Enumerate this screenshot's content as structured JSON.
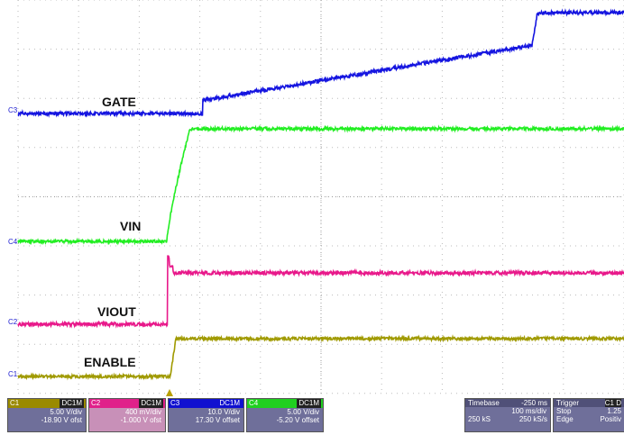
{
  "trace_labels": [
    "GATE",
    "VIN",
    "VIOUT",
    "ENABLE"
  ],
  "channel_markers": [
    "C3",
    "C4",
    "C2",
    "C1"
  ],
  "channels": [
    {
      "name": "C1",
      "coupling": "DC1M",
      "scale": "5.00 V/div",
      "offset": "-18.90 V ofst"
    },
    {
      "name": "C2",
      "coupling": "DC1M",
      "scale": "400 mV/div",
      "offset": "-1.000 V ofst"
    },
    {
      "name": "C3",
      "coupling": "DC1M",
      "scale": "10.0 V/div",
      "offset": "17.30 V offset"
    },
    {
      "name": "C4",
      "coupling": "DC1M",
      "scale": "5.00 V/div",
      "offset": "-5.20 V offset"
    }
  ],
  "timebase": {
    "title": "Timebase",
    "delay": "-250 ms",
    "scale": "100 ms/div",
    "samples": "250 kS",
    "rate": "250 kS/s"
  },
  "trigger": {
    "title": "Trigger",
    "source": "C1 D",
    "mode": "Stop",
    "level": "1.25",
    "type": "Edge",
    "slope": "Positiv"
  }
}
